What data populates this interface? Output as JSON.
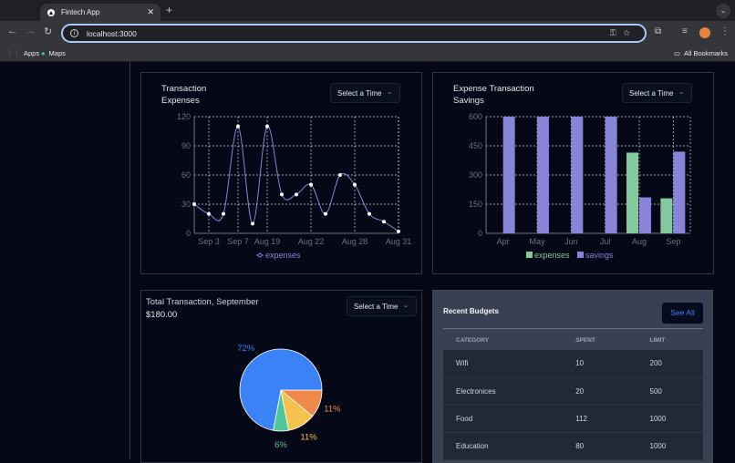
{
  "browser": {
    "tab_title": "Fintech App",
    "url": "localhost:3000",
    "bookmarks": [
      "Apps",
      "Maps"
    ],
    "all_bookmarks": "All Bookmarks"
  },
  "line_card": {
    "title_line1": "Transaction",
    "title_line2": "Expenses",
    "select_label": "Select a Time"
  },
  "bar_card": {
    "title_line1": "Expense Transaction",
    "title_line2": "Savings",
    "select_label": "Select a Time"
  },
  "pie_card": {
    "title": "Total Transaction, September",
    "amount": "$180.00",
    "select_label": "Select a Time"
  },
  "budgets": {
    "title": "Recent Budgets",
    "see_all": "See All",
    "columns": [
      "CATEGORY",
      "SPENT",
      "LIMIT"
    ],
    "rows": [
      [
        "Wifi",
        "10",
        "200"
      ],
      [
        "Electronices",
        "20",
        "500"
      ],
      [
        "Food",
        "112",
        "1000"
      ],
      [
        "Education",
        "80",
        "1000"
      ]
    ]
  },
  "chart_data": [
    {
      "type": "line",
      "x_labels": [
        "",
        "Sep 3",
        "",
        "Sep 7",
        "",
        "Aug 19",
        "",
        "",
        "Aug 22",
        "",
        "",
        "Aug 28",
        "",
        "",
        "Aug 31"
      ],
      "series": [
        {
          "name": "expenses",
          "values": [
            30,
            20,
            20,
            110,
            10,
            110,
            40,
            40,
            50,
            20,
            60,
            50,
            20,
            12,
            2
          ],
          "color": "#8884d8"
        }
      ],
      "ylim": [
        0,
        120
      ],
      "yticks": [
        0,
        30,
        60,
        90,
        120
      ],
      "grid": true,
      "legend": "bottom"
    },
    {
      "type": "bar",
      "categories": [
        "Apr",
        "May",
        "Jun",
        "Jul",
        "Aug",
        "Sep"
      ],
      "series": [
        {
          "name": "expenses",
          "values": [
            0,
            0,
            0,
            0,
            415,
            180
          ],
          "color": "#82ca9d"
        },
        {
          "name": "savings",
          "values": [
            600,
            600,
            600,
            600,
            185,
            420
          ],
          "color": "#8884d8"
        }
      ],
      "ylim": [
        0,
        600
      ],
      "yticks": [
        0,
        150,
        300,
        450,
        600
      ],
      "grid": true,
      "legend": "bottom"
    },
    {
      "type": "pie",
      "slices": [
        {
          "label": "11%",
          "value": 11,
          "color": "#f08a4b"
        },
        {
          "label": "11%",
          "value": 11,
          "color": "#f6c24d"
        },
        {
          "label": "6%",
          "value": 6,
          "color": "#4fc79a"
        },
        {
          "label": "72%",
          "value": 72,
          "color": "#3b82f6"
        }
      ]
    }
  ]
}
